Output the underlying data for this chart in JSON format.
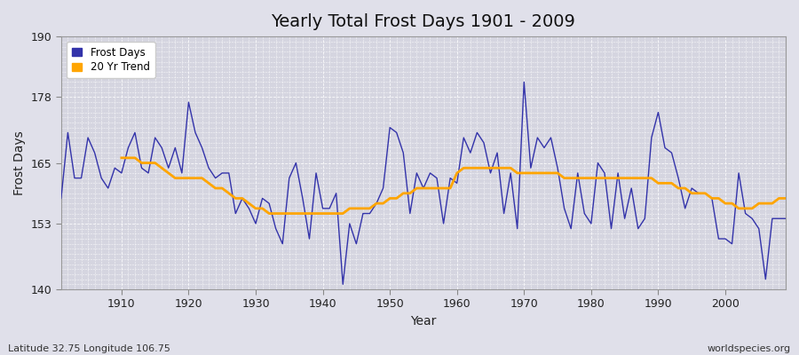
{
  "title": "Yearly Total Frost Days 1901 - 2009",
  "xlabel": "Year",
  "ylabel": "Frost Days",
  "lat_lon_label": "Latitude 32.75 Longitude 106.75",
  "watermark": "worldspecies.org",
  "ylim": [
    140,
    190
  ],
  "yticks": [
    140,
    153,
    165,
    178,
    190
  ],
  "xticks": [
    1910,
    1920,
    1930,
    1940,
    1950,
    1960,
    1970,
    1980,
    1990,
    2000
  ],
  "xlim": [
    1901,
    2009
  ],
  "years": [
    1901,
    1902,
    1903,
    1904,
    1905,
    1906,
    1907,
    1908,
    1909,
    1910,
    1911,
    1912,
    1913,
    1914,
    1915,
    1916,
    1917,
    1918,
    1919,
    1920,
    1921,
    1922,
    1923,
    1924,
    1925,
    1926,
    1927,
    1928,
    1929,
    1930,
    1931,
    1932,
    1933,
    1934,
    1935,
    1936,
    1937,
    1938,
    1939,
    1940,
    1941,
    1942,
    1943,
    1944,
    1945,
    1946,
    1947,
    1948,
    1949,
    1950,
    1951,
    1952,
    1953,
    1954,
    1955,
    1956,
    1957,
    1958,
    1959,
    1960,
    1961,
    1962,
    1963,
    1964,
    1965,
    1966,
    1967,
    1968,
    1969,
    1970,
    1971,
    1972,
    1973,
    1974,
    1975,
    1976,
    1977,
    1978,
    1979,
    1980,
    1981,
    1982,
    1983,
    1984,
    1985,
    1986,
    1987,
    1988,
    1989,
    1990,
    1991,
    1992,
    1993,
    1994,
    1995,
    1996,
    1997,
    1998,
    1999,
    2000,
    2001,
    2002,
    2003,
    2004,
    2005,
    2006,
    2007,
    2008,
    2009
  ],
  "frost_days": [
    158,
    171,
    162,
    162,
    170,
    167,
    162,
    160,
    164,
    163,
    168,
    171,
    164,
    163,
    170,
    168,
    164,
    168,
    163,
    177,
    171,
    168,
    164,
    162,
    163,
    163,
    155,
    158,
    156,
    153,
    158,
    157,
    152,
    149,
    162,
    165,
    158,
    150,
    163,
    156,
    156,
    159,
    141,
    153,
    149,
    155,
    155,
    157,
    160,
    172,
    171,
    167,
    155,
    163,
    160,
    163,
    162,
    153,
    162,
    161,
    170,
    167,
    171,
    169,
    163,
    167,
    155,
    163,
    152,
    181,
    164,
    170,
    168,
    170,
    164,
    156,
    152,
    163,
    155,
    153,
    165,
    163,
    152,
    163,
    154,
    160,
    152,
    154,
    170,
    175,
    168,
    167,
    162,
    156,
    160,
    159,
    159,
    158,
    150,
    150,
    149,
    163,
    155,
    154,
    152,
    142,
    154,
    154,
    154
  ],
  "trend_values": [
    null,
    null,
    null,
    null,
    null,
    null,
    null,
    null,
    null,
    166,
    166,
    166,
    165,
    165,
    165,
    164,
    163,
    162,
    162,
    162,
    162,
    162,
    161,
    160,
    160,
    159,
    158,
    158,
    157,
    156,
    156,
    155,
    155,
    155,
    155,
    155,
    155,
    155,
    155,
    155,
    155,
    155,
    155,
    156,
    156,
    156,
    156,
    157,
    157,
    158,
    158,
    159,
    159,
    160,
    160,
    160,
    160,
    160,
    160,
    163,
    164,
    164,
    164,
    164,
    164,
    164,
    164,
    164,
    163,
    163,
    163,
    163,
    163,
    163,
    163,
    162,
    162,
    162,
    162,
    162,
    162,
    162,
    162,
    162,
    162,
    162,
    162,
    162,
    162,
    161,
    161,
    161,
    160,
    160,
    159,
    159,
    159,
    158,
    158,
    157,
    157,
    156,
    156,
    156,
    157,
    157,
    157,
    158,
    158
  ],
  "line_color": "#3333aa",
  "trend_color": "#FFA500",
  "bg_color": "#e0e0ea",
  "inner_bg_color": "#d5d5e0",
  "grid_color": "#ffffff",
  "title_fontsize": 14,
  "axis_fontsize": 10,
  "tick_fontsize": 9,
  "legend_square_color_frost": "#3333aa",
  "legend_square_color_trend": "#FFA500"
}
